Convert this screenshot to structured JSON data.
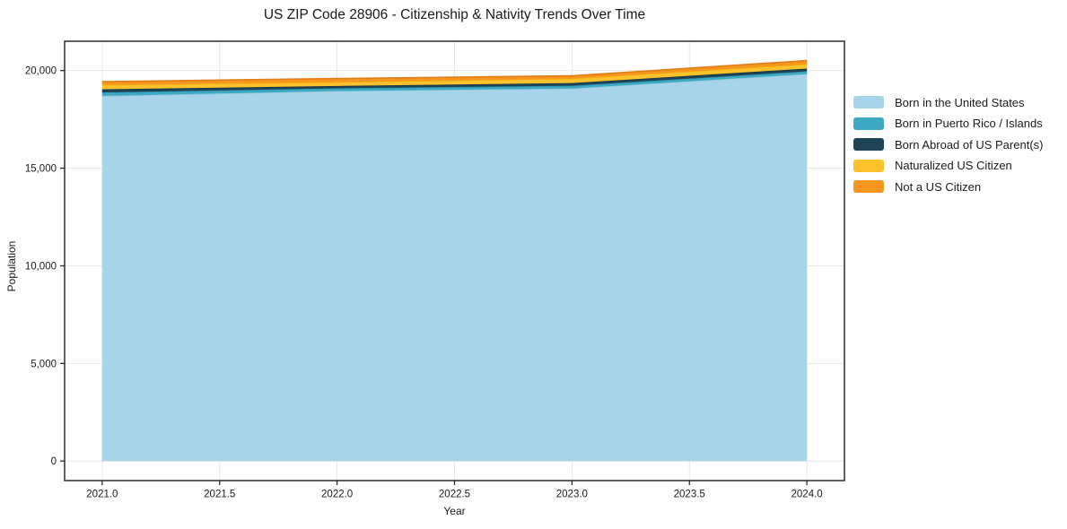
{
  "chart_data": {
    "type": "area",
    "stacked": true,
    "title": "US ZIP Code 28906 - Citizenship & Nativity Trends Over Time",
    "xlabel": "Year",
    "ylabel": "Population",
    "x": [
      2021,
      2022,
      2023,
      2024
    ],
    "series": [
      {
        "name": "Born in the United States",
        "color": "#a7d4e8",
        "edge": "#93c7de",
        "values": [
          18700,
          18950,
          19080,
          19820
        ]
      },
      {
        "name": "Born in Puerto Rico / Islands",
        "color": "#3da9c2",
        "edge": "#2f97af",
        "values": [
          180,
          140,
          140,
          140
        ]
      },
      {
        "name": "Born Abroad of US Parent(s)",
        "color": "#1e4356",
        "edge": "#183747",
        "values": [
          160,
          120,
          140,
          140
        ]
      },
      {
        "name": "Naturalized US Citizen",
        "color": "#fcc22d",
        "edge": "#f0ac15",
        "values": [
          230,
          200,
          230,
          230
        ]
      },
      {
        "name": "Not a US Citizen",
        "color": "#f6961e",
        "edge": "#e07d17",
        "values": [
          160,
          180,
          140,
          180
        ]
      }
    ],
    "xlim": [
      2020.84,
      2024.16
    ],
    "ylim": [
      -1000,
      21500
    ],
    "xticks": [
      2021.0,
      2021.5,
      2022.0,
      2022.5,
      2023.0,
      2023.5,
      2024.0
    ],
    "xtick_labels": [
      "2021.0",
      "2021.5",
      "2022.0",
      "2022.5",
      "2023.0",
      "2023.5",
      "2024.0"
    ],
    "yticks": [
      0,
      5000,
      10000,
      15000,
      20000
    ],
    "ytick_labels": [
      "0",
      "5,000",
      "10,000",
      "15,000",
      "20,000"
    ],
    "grid": true,
    "legend_position": "right",
    "colors": {
      "background": "#ffffff",
      "grid": "#e7e7e7",
      "spine": "#2b2b2b",
      "tick": "#2b2b2b",
      "text": "#1a1a1a"
    }
  }
}
